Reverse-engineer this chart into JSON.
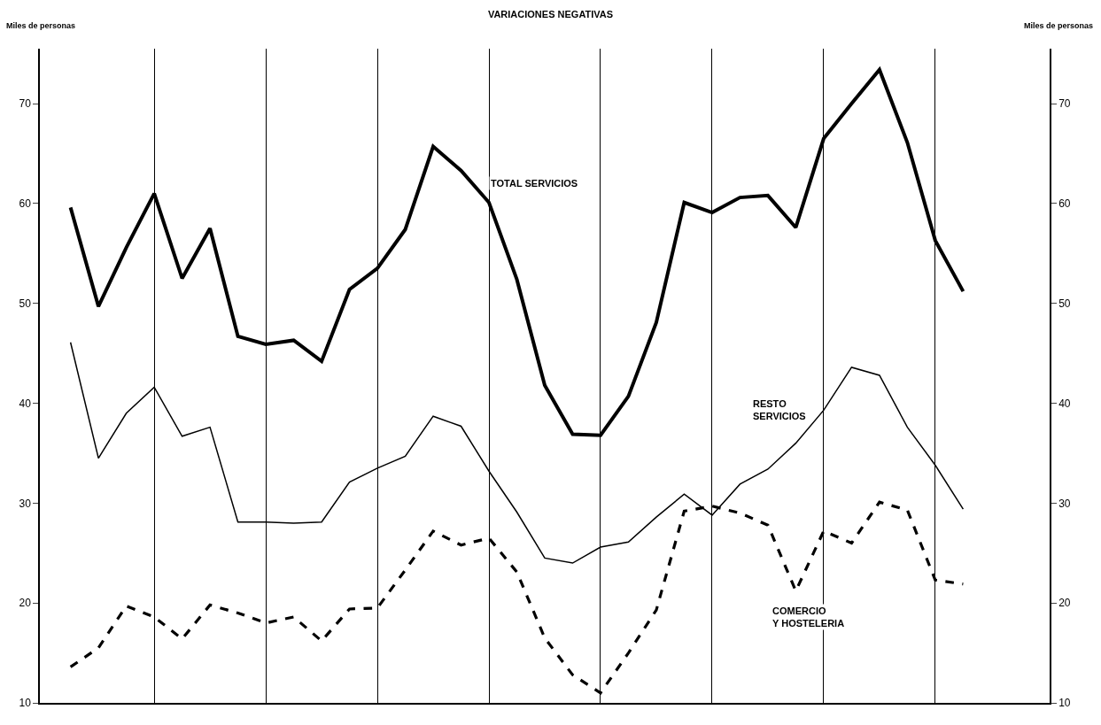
{
  "chart_data": {
    "type": "line",
    "title": "VARIACIONES NEGATIVAS",
    "ylabel": "Miles de personas",
    "y2label": "Miles de personas",
    "categories": [
      null,
      null,
      null,
      null,
      null,
      null,
      null,
      null,
      null,
      null,
      null,
      null,
      null,
      null,
      null,
      null,
      null,
      null,
      null,
      null,
      null,
      null,
      null,
      null,
      null,
      null,
      null,
      null,
      null,
      null,
      null,
      null,
      null
    ],
    "ylim": [
      10,
      75.5
    ],
    "yticks": [
      10,
      20,
      30,
      40,
      50,
      60,
      70
    ],
    "y2lim": [
      10,
      75.5
    ],
    "y2ticks": [
      10,
      20,
      30,
      40,
      50,
      60,
      70
    ],
    "tick_labels": "y",
    "grid": "x",
    "legend": false,
    "marker": "none",
    "series": [
      {
        "name": "TOTAL SERVICIOS",
        "color": "#000000",
        "line_style": "solid",
        "values": [
          59.6,
          49.7,
          55.6,
          61.0,
          52.5,
          57.5,
          46.7,
          45.9,
          46.3,
          44.2,
          51.4,
          53.5,
          57.4,
          65.7,
          63.3,
          60.1,
          52.4,
          41.8,
          36.9,
          36.8,
          40.7,
          48.1,
          60.1,
          59.1,
          60.6,
          60.8,
          57.6,
          66.5,
          70.0,
          73.4,
          66.1,
          56.3,
          51.2
        ]
      },
      {
        "name": "RESTO SERVICIOS",
        "color": "#000000",
        "line_style": "solid",
        "values": [
          46.1,
          34.5,
          39.0,
          41.6,
          36.7,
          37.6,
          28.1,
          28.1,
          28.0,
          28.1,
          32.1,
          33.5,
          34.7,
          38.7,
          37.7,
          33.2,
          29.1,
          24.5,
          24.0,
          25.6,
          26.1,
          28.6,
          30.9,
          28.8,
          31.9,
          33.4,
          36.0,
          39.3,
          43.6,
          42.8,
          37.6,
          33.8,
          29.4
        ]
      },
      {
        "name": "COMERCIO Y HOSTELERIA",
        "color": "#000000",
        "line_style": "dashed",
        "values": [
          13.6,
          15.5,
          19.7,
          18.6,
          16.4,
          19.8,
          19.0,
          18.0,
          18.6,
          16.2,
          19.4,
          19.5,
          23.3,
          27.2,
          25.8,
          26.5,
          23.1,
          16.5,
          12.8,
          11.0,
          15.0,
          19.3,
          29.2,
          29.7,
          29.0,
          27.8,
          21.2,
          27.2,
          26.0,
          30.1,
          29.3,
          22.3,
          21.9
        ]
      }
    ]
  }
}
